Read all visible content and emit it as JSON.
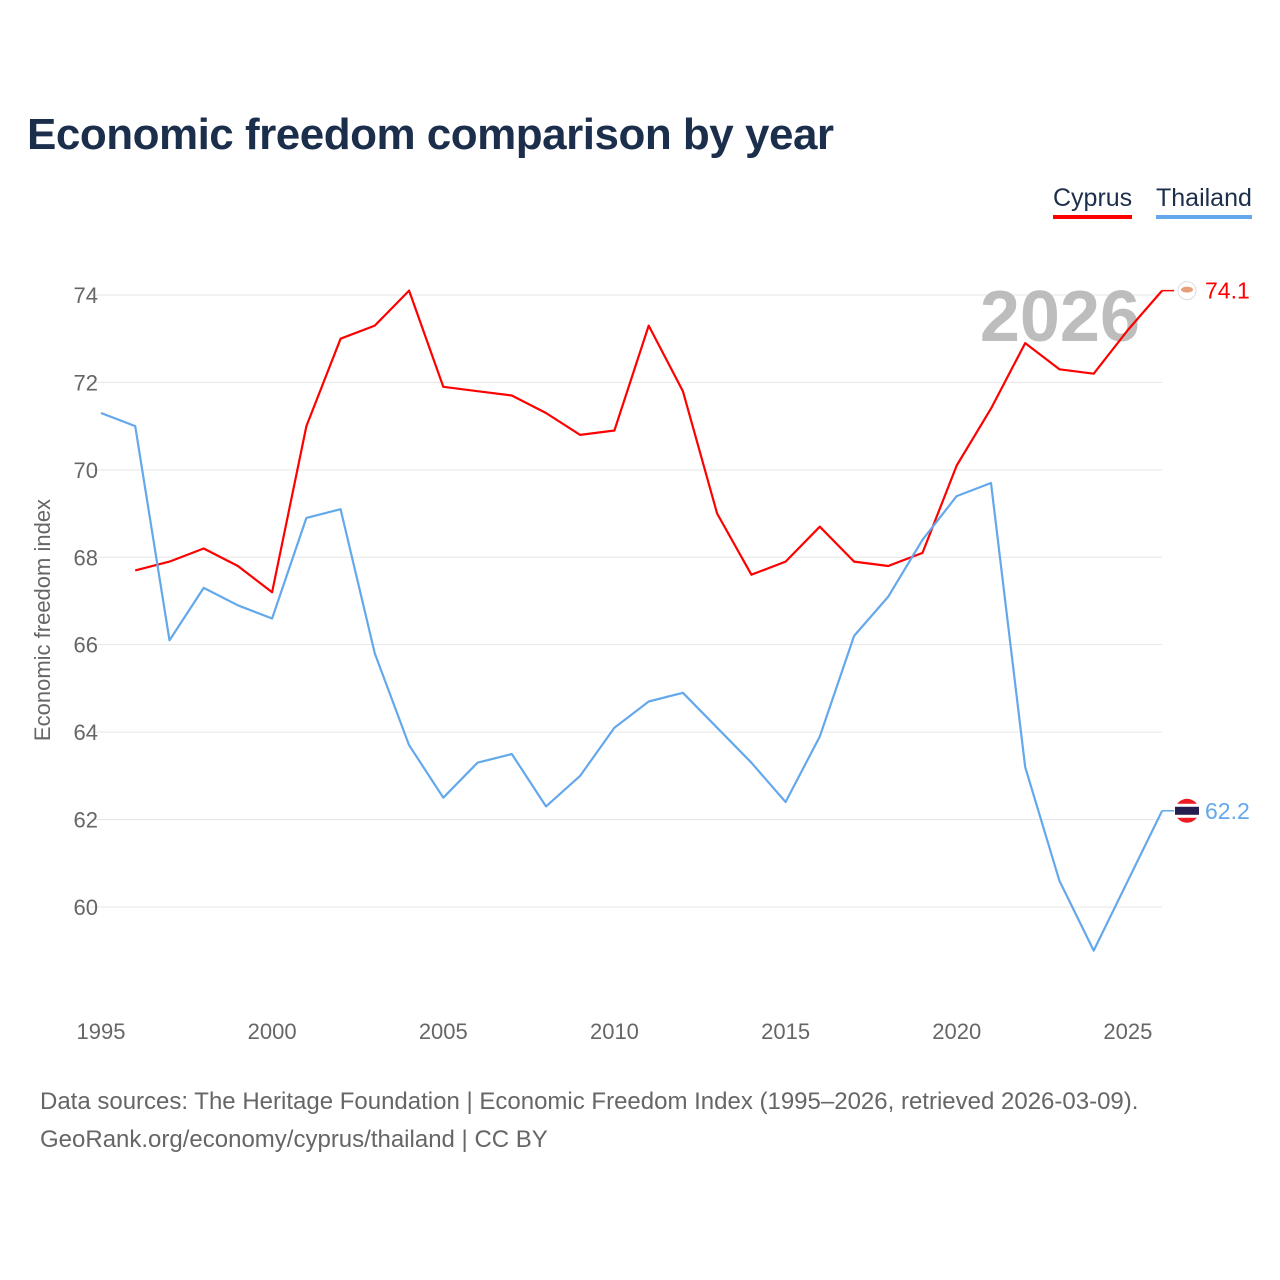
{
  "title": "Economic freedom comparison by year",
  "legend": [
    {
      "label": "Cyprus",
      "color": "#ff0000"
    },
    {
      "label": "Thailand",
      "color": "#64a8ec"
    }
  ],
  "footer": {
    "line1": "Data sources: The Heritage Foundation | Economic Freedom Index (1995–2026, retrieved 2026-03-09).",
    "line2": "GeoRank.org/economy/cyprus/thailand | CC BY"
  },
  "chart_data": {
    "type": "line",
    "title": "Economic freedom comparison by year",
    "xlabel": "",
    "ylabel": "Economic freedom index",
    "year_watermark": "2026",
    "xlim": [
      1995,
      2026
    ],
    "ylim": [
      58,
      75.5
    ],
    "xticks": [
      1995,
      2000,
      2005,
      2010,
      2015,
      2020,
      2025
    ],
    "yticks": [
      60,
      62,
      64,
      66,
      68,
      70,
      72,
      74
    ],
    "grid": true,
    "legend_position": "top-right",
    "series": [
      {
        "name": "Cyprus",
        "color": "#ff0000",
        "end_label": "74.1",
        "x": [
          1996,
          1997,
          1998,
          1999,
          2000,
          2001,
          2002,
          2003,
          2004,
          2005,
          2006,
          2007,
          2008,
          2009,
          2010,
          2011,
          2012,
          2013,
          2014,
          2015,
          2016,
          2017,
          2018,
          2019,
          2020,
          2021,
          2022,
          2023,
          2024,
          2025,
          2026
        ],
        "values": [
          67.7,
          67.9,
          68.2,
          67.8,
          67.2,
          71.0,
          73.0,
          73.3,
          74.1,
          71.9,
          71.8,
          71.7,
          71.3,
          70.8,
          70.9,
          73.3,
          71.8,
          69.0,
          67.6,
          67.9,
          68.7,
          67.9,
          67.8,
          68.1,
          70.1,
          71.4,
          72.9,
          72.3,
          72.2,
          73.2,
          74.1
        ]
      },
      {
        "name": "Thailand",
        "color": "#64a8ec",
        "end_label": "62.2",
        "x": [
          1995,
          1996,
          1997,
          1998,
          1999,
          2000,
          2001,
          2002,
          2003,
          2004,
          2005,
          2006,
          2007,
          2008,
          2009,
          2010,
          2011,
          2012,
          2013,
          2014,
          2015,
          2016,
          2017,
          2018,
          2019,
          2020,
          2021,
          2022,
          2023,
          2024,
          2025,
          2026
        ],
        "values": [
          71.3,
          71.0,
          66.1,
          67.3,
          66.9,
          66.6,
          68.9,
          69.1,
          65.8,
          63.7,
          62.5,
          63.3,
          63.5,
          62.3,
          63.0,
          64.1,
          64.7,
          64.9,
          64.1,
          63.3,
          62.4,
          63.9,
          66.2,
          67.1,
          68.4,
          69.4,
          69.7,
          63.2,
          60.6,
          59.0,
          60.6,
          62.2
        ]
      }
    ]
  }
}
